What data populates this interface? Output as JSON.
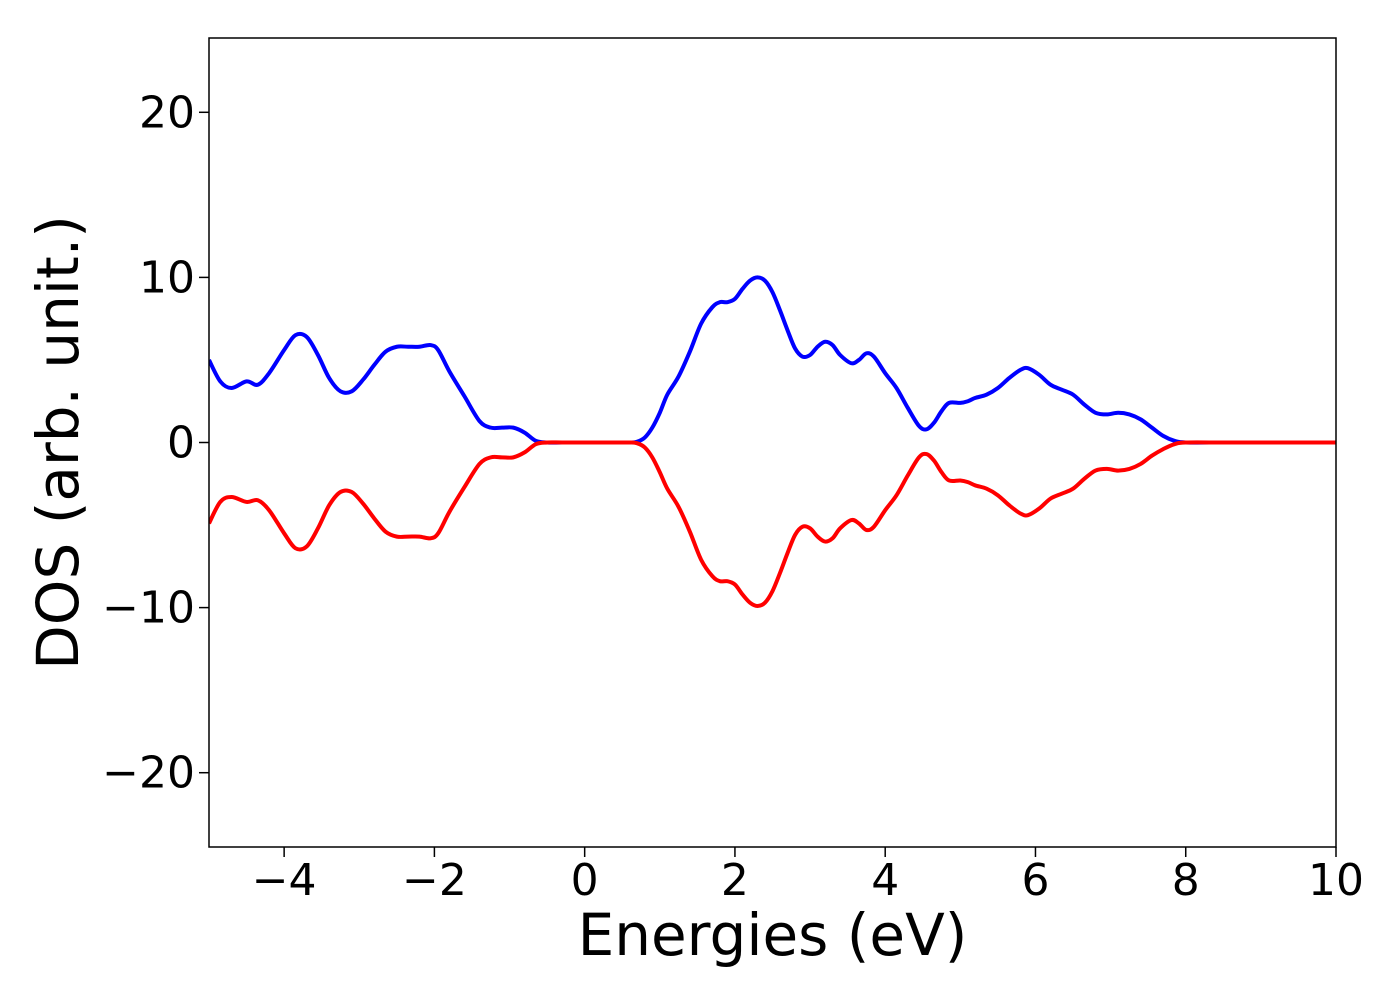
{
  "chart_data": {
    "type": "line",
    "title": "",
    "xlabel": "Energies (eV)",
    "ylabel": "DOS (arb. unit.)",
    "xlim": [
      -5,
      10
    ],
    "ylim": [
      -24.5,
      24.5
    ],
    "xticks": [
      -4,
      -2,
      0,
      2,
      4,
      6,
      8,
      10
    ],
    "xtick_labels": [
      "−4",
      "−2",
      "0",
      "2",
      "4",
      "6",
      "8",
      "10"
    ],
    "yticks": [
      20,
      10,
      0,
      -10,
      -20
    ],
    "ytick_labels": [
      "20",
      "10",
      "0",
      "−10",
      "−20"
    ],
    "grid": false,
    "legend": null,
    "series": [
      {
        "color": "#0000ff",
        "x": [
          -5.0,
          -4.85,
          -4.7,
          -4.5,
          -4.35,
          -4.2,
          -4.0,
          -3.85,
          -3.7,
          -3.55,
          -3.4,
          -3.25,
          -3.1,
          -2.95,
          -2.8,
          -2.65,
          -2.5,
          -2.35,
          -2.2,
          -2.05,
          -1.95,
          -1.8,
          -1.6,
          -1.4,
          -1.25,
          -1.1,
          -0.95,
          -0.8,
          -0.65,
          -0.5,
          -0.3,
          0.0,
          0.3,
          0.6,
          0.7,
          0.8,
          0.9,
          1.0,
          1.1,
          1.25,
          1.4,
          1.55,
          1.7,
          1.8,
          1.9,
          2.0,
          2.1,
          2.2,
          2.3,
          2.4,
          2.5,
          2.6,
          2.7,
          2.8,
          2.9,
          3.0,
          3.1,
          3.2,
          3.3,
          3.4,
          3.55,
          3.65,
          3.75,
          3.85,
          4.0,
          4.15,
          4.3,
          4.45,
          4.55,
          4.65,
          4.75,
          4.85,
          5.0,
          5.1,
          5.2,
          5.35,
          5.5,
          5.65,
          5.8,
          5.9,
          6.05,
          6.2,
          6.35,
          6.5,
          6.65,
          6.8,
          6.95,
          7.1,
          7.25,
          7.4,
          7.55,
          7.7,
          7.85,
          8.0,
          8.5,
          9.0,
          9.5,
          10.0
        ],
        "y": [
          5.0,
          3.7,
          3.3,
          3.7,
          3.5,
          4.2,
          5.6,
          6.5,
          6.4,
          5.3,
          3.9,
          3.1,
          3.1,
          3.8,
          4.7,
          5.5,
          5.8,
          5.8,
          5.8,
          5.9,
          5.6,
          4.3,
          2.8,
          1.3,
          0.9,
          0.9,
          0.9,
          0.6,
          0.1,
          0.0,
          0.0,
          0.0,
          0.0,
          0.0,
          0.05,
          0.3,
          0.9,
          1.8,
          2.9,
          4.0,
          5.5,
          7.2,
          8.2,
          8.5,
          8.5,
          8.7,
          9.3,
          9.8,
          10.0,
          9.8,
          9.1,
          8.0,
          6.8,
          5.7,
          5.2,
          5.3,
          5.8,
          6.1,
          5.9,
          5.3,
          4.8,
          5.0,
          5.4,
          5.2,
          4.2,
          3.3,
          2.1,
          1.0,
          0.8,
          1.2,
          1.9,
          2.4,
          2.4,
          2.5,
          2.7,
          2.9,
          3.3,
          3.9,
          4.4,
          4.5,
          4.1,
          3.5,
          3.2,
          2.9,
          2.3,
          1.8,
          1.7,
          1.8,
          1.7,
          1.4,
          0.9,
          0.4,
          0.1,
          0.0,
          0.0,
          0.0,
          0.0,
          0.0
        ]
      },
      {
        "color": "#ff0000",
        "x": [
          -5.0,
          -4.85,
          -4.7,
          -4.5,
          -4.35,
          -4.2,
          -4.0,
          -3.85,
          -3.7,
          -3.55,
          -3.4,
          -3.25,
          -3.1,
          -2.95,
          -2.8,
          -2.65,
          -2.5,
          -2.35,
          -2.2,
          -2.05,
          -1.95,
          -1.8,
          -1.6,
          -1.4,
          -1.25,
          -1.1,
          -0.95,
          -0.8,
          -0.65,
          -0.5,
          -0.3,
          0.0,
          0.3,
          0.6,
          0.7,
          0.8,
          0.9,
          1.0,
          1.1,
          1.25,
          1.4,
          1.55,
          1.7,
          1.8,
          1.9,
          2.0,
          2.1,
          2.2,
          2.3,
          2.4,
          2.5,
          2.6,
          2.7,
          2.8,
          2.9,
          3.0,
          3.1,
          3.2,
          3.3,
          3.4,
          3.55,
          3.65,
          3.75,
          3.85,
          4.0,
          4.15,
          4.3,
          4.45,
          4.55,
          4.65,
          4.75,
          4.85,
          5.0,
          5.1,
          5.2,
          5.35,
          5.5,
          5.65,
          5.8,
          5.9,
          6.05,
          6.2,
          6.35,
          6.5,
          6.65,
          6.8,
          6.95,
          7.1,
          7.25,
          7.4,
          7.55,
          7.7,
          7.85,
          8.0,
          8.5,
          9.0,
          9.5,
          10.0
        ],
        "y": [
          -4.9,
          -3.6,
          -3.3,
          -3.6,
          -3.5,
          -4.1,
          -5.5,
          -6.4,
          -6.3,
          -5.2,
          -3.8,
          -3.0,
          -3.0,
          -3.7,
          -4.6,
          -5.4,
          -5.7,
          -5.7,
          -5.7,
          -5.8,
          -5.5,
          -4.2,
          -2.7,
          -1.3,
          -0.9,
          -0.9,
          -0.9,
          -0.6,
          -0.1,
          0.0,
          0.0,
          0.0,
          0.0,
          0.0,
          -0.05,
          -0.3,
          -0.9,
          -1.8,
          -2.8,
          -3.9,
          -5.4,
          -7.1,
          -8.1,
          -8.4,
          -8.4,
          -8.6,
          -9.2,
          -9.7,
          -9.9,
          -9.7,
          -9.0,
          -7.9,
          -6.7,
          -5.6,
          -5.1,
          -5.2,
          -5.7,
          -6.0,
          -5.8,
          -5.2,
          -4.7,
          -4.9,
          -5.3,
          -5.1,
          -4.1,
          -3.2,
          -2.0,
          -0.9,
          -0.7,
          -1.1,
          -1.8,
          -2.3,
          -2.3,
          -2.4,
          -2.6,
          -2.8,
          -3.2,
          -3.8,
          -4.3,
          -4.4,
          -4.0,
          -3.4,
          -3.1,
          -2.8,
          -2.2,
          -1.7,
          -1.6,
          -1.7,
          -1.6,
          -1.3,
          -0.8,
          -0.4,
          -0.1,
          0.0,
          0.0,
          0.0,
          0.0,
          0.0
        ]
      }
    ]
  }
}
